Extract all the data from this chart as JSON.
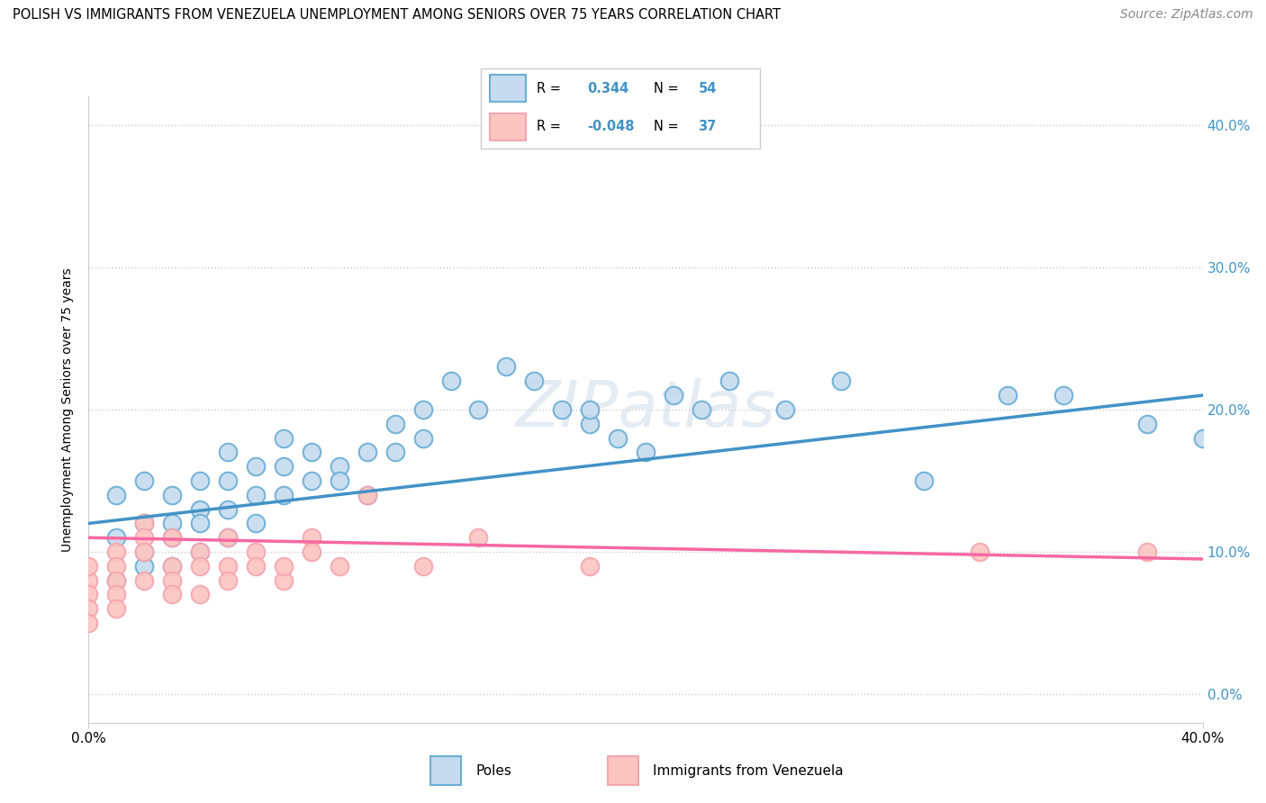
{
  "title": "POLISH VS IMMIGRANTS FROM VENEZUELA UNEMPLOYMENT AMONG SENIORS OVER 75 YEARS CORRELATION CHART",
  "source": "Source: ZipAtlas.com",
  "ylabel": "Unemployment Among Seniors over 75 years",
  "ytick_vals": [
    0,
    10,
    20,
    30,
    40
  ],
  "xlim": [
    0,
    40
  ],
  "ylim": [
    -2,
    42
  ],
  "r_poles": 0.344,
  "n_poles": 54,
  "r_venezuela": -0.048,
  "n_venezuela": 37,
  "blue_face": "#c6dbef",
  "blue_edge": "#6baed6",
  "pink_face": "#fcc5c0",
  "pink_edge": "#f4a6b0",
  "blue_line": "#4292c6",
  "pink_line": "#f768a1",
  "poles_x": [
    1,
    1,
    1,
    2,
    2,
    2,
    2,
    3,
    3,
    3,
    3,
    4,
    4,
    4,
    4,
    5,
    5,
    5,
    5,
    6,
    6,
    6,
    7,
    7,
    7,
    8,
    8,
    9,
    9,
    10,
    10,
    11,
    11,
    12,
    12,
    13,
    14,
    15,
    16,
    17,
    18,
    18,
    19,
    20,
    21,
    22,
    23,
    25,
    27,
    30,
    33,
    35,
    38,
    40
  ],
  "poles_y": [
    8,
    11,
    14,
    9,
    12,
    15,
    10,
    9,
    12,
    14,
    11,
    13,
    10,
    15,
    12,
    13,
    15,
    11,
    17,
    14,
    16,
    12,
    16,
    14,
    18,
    15,
    17,
    16,
    15,
    17,
    14,
    17,
    19,
    20,
    18,
    22,
    20,
    23,
    22,
    20,
    19,
    20,
    18,
    17,
    21,
    20,
    22,
    20,
    22,
    15,
    21,
    21,
    19,
    18
  ],
  "ven_x": [
    0,
    0,
    0,
    0,
    0,
    1,
    1,
    1,
    1,
    1,
    2,
    2,
    2,
    2,
    3,
    3,
    3,
    3,
    4,
    4,
    4,
    5,
    5,
    5,
    6,
    6,
    7,
    7,
    8,
    8,
    9,
    10,
    12,
    14,
    18,
    32,
    38
  ],
  "ven_y": [
    8,
    7,
    6,
    5,
    9,
    10,
    9,
    8,
    7,
    6,
    12,
    11,
    10,
    8,
    11,
    9,
    8,
    7,
    10,
    9,
    7,
    9,
    8,
    11,
    10,
    9,
    8,
    9,
    11,
    10,
    9,
    14,
    9,
    11,
    9,
    10,
    10
  ]
}
